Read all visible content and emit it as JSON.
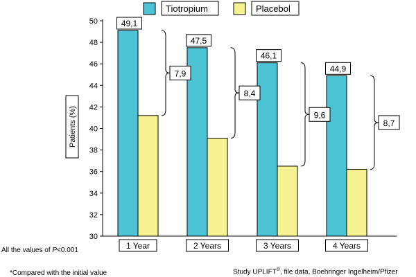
{
  "chart_data": {
    "type": "bar",
    "categories": [
      "1 Year",
      "2 Years",
      "3 Years",
      "4 Years"
    ],
    "series": [
      {
        "name": "Tiotropium",
        "values": [
          49.1,
          47.5,
          46.1,
          44.9
        ],
        "color": "#4cc4d6"
      },
      {
        "name": "Placebol",
        "values": [
          41.2,
          39.1,
          36.5,
          36.2
        ],
        "color": "#f7f393"
      }
    ],
    "value_labels": [
      "49,1",
      "47,5",
      "46,1",
      "44,9"
    ],
    "difference_labels": [
      "7,9",
      "8,4",
      "9,6",
      "8,7"
    ],
    "ylabel": "Patients (%)",
    "xlabel": "",
    "title": "",
    "ylim": [
      30,
      50
    ],
    "yticks": [
      30,
      32,
      34,
      36,
      38,
      40,
      42,
      44,
      46,
      48,
      50
    ],
    "grid": false,
    "legend_position": "top"
  },
  "footnotes": {
    "significance_prefix": "All the values of ",
    "significance_var": "P",
    "significance_suffix": "<0.001",
    "compared": "*Compared with the initial value",
    "source_prefix": "Study UPLIFT",
    "source_mark": "®",
    "source_suffix": ", file data, Boehringer Ingelheim/Pfizer"
  }
}
